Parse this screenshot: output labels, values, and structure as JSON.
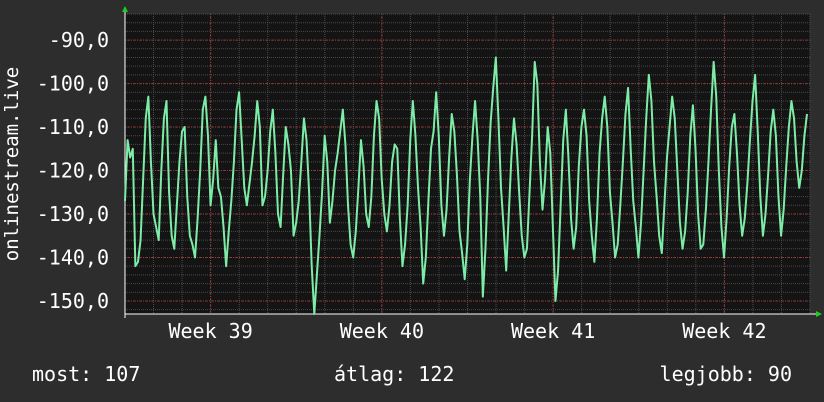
{
  "chart_data": {
    "type": "line",
    "ylabel": "onlinestream.live",
    "yticks": [
      "-90,0",
      "-100,0",
      "-110,0",
      "-120,0",
      "-130,0",
      "-140,0",
      "-150,0"
    ],
    "ytick_values": [
      -90,
      -100,
      -110,
      -120,
      -130,
      -140,
      -150
    ],
    "ylim": [
      -153,
      -84
    ],
    "xlim": [
      0,
      24
    ],
    "xticks": [
      {
        "label": "Week 39",
        "pos": 3
      },
      {
        "label": "Week 40",
        "pos": 9
      },
      {
        "label": "Week 41",
        "pos": 15
      },
      {
        "label": "Week 42",
        "pos": 21
      }
    ],
    "grid": true,
    "colors": {
      "background": "#2d2d2d",
      "plot_bg": "#141414",
      "line": "#7deca7",
      "grid_major": "#c03030",
      "grid_minor": "#4a4a4a",
      "axis": "#ffffff",
      "arrow": "#22cc22"
    },
    "series": [
      {
        "values": [
          -127,
          -113,
          -117,
          -115,
          -142,
          -141,
          -136,
          -122,
          -108,
          -103,
          -118,
          -130,
          -133,
          -136,
          -120,
          -108,
          -104,
          -125,
          -135,
          -138,
          -128,
          -118,
          -111,
          -110,
          -126,
          -135,
          -137,
          -140,
          -131,
          -120,
          -106,
          -103,
          -112,
          -128,
          -122,
          -113,
          -124,
          -126,
          -133,
          -142,
          -134,
          -127,
          -118,
          -106,
          -102,
          -113,
          -124,
          -128,
          -123,
          -118,
          -112,
          -104,
          -110,
          -128,
          -126,
          -120,
          -111,
          -106,
          -116,
          -130,
          -133,
          -121,
          -110,
          -114,
          -120,
          -135,
          -132,
          -127,
          -118,
          -108,
          -113,
          -125,
          -142,
          -153,
          -144,
          -135,
          -125,
          -112,
          -118,
          -132,
          -127,
          -120,
          -116,
          -111,
          -106,
          -114,
          -128,
          -137,
          -140,
          -134,
          -124,
          -113,
          -119,
          -130,
          -133,
          -126,
          -112,
          -104,
          -108,
          -122,
          -130,
          -134,
          -128,
          -118,
          -114,
          -115,
          -131,
          -142,
          -137,
          -128,
          -113,
          -104,
          -112,
          -124,
          -133,
          -146,
          -140,
          -127,
          -115,
          -111,
          -102,
          -112,
          -128,
          -135,
          -129,
          -117,
          -107,
          -111,
          -121,
          -134,
          -139,
          -145,
          -137,
          -122,
          -112,
          -104,
          -113,
          -126,
          -149,
          -138,
          -122,
          -109,
          -101,
          -94,
          -108,
          -124,
          -133,
          -143,
          -130,
          -117,
          -108,
          -114,
          -125,
          -135,
          -140,
          -138,
          -125,
          -112,
          -95,
          -100,
          -118,
          -129,
          -122,
          -110,
          -116,
          -133,
          -150,
          -143,
          -128,
          -113,
          -106,
          -117,
          -131,
          -138,
          -133,
          -119,
          -110,
          -106,
          -112,
          -127,
          -135,
          -141,
          -131,
          -116,
          -108,
          -103,
          -110,
          -125,
          -132,
          -140,
          -137,
          -128,
          -118,
          -107,
          -101,
          -115,
          -127,
          -133,
          -140,
          -132,
          -120,
          -108,
          -98,
          -104,
          -118,
          -126,
          -135,
          -139,
          -128,
          -117,
          -110,
          -103,
          -108,
          -120,
          -132,
          -138,
          -134,
          -125,
          -112,
          -105,
          -115,
          -130,
          -138,
          -137,
          -129,
          -118,
          -106,
          -95,
          -103,
          -120,
          -133,
          -140,
          -131,
          -119,
          -110,
          -107,
          -116,
          -128,
          -135,
          -131,
          -123,
          -113,
          -104,
          -98,
          -111,
          -126,
          -135,
          -130,
          -121,
          -111,
          -106,
          -112,
          -126,
          -135,
          -129,
          -119,
          -110,
          -104,
          -108,
          -118,
          -124,
          -120,
          -112,
          -107
        ]
      }
    ]
  },
  "footer": {
    "now": "most: 107",
    "avg": "átlag: 122",
    "max": "legjobb: 90"
  }
}
